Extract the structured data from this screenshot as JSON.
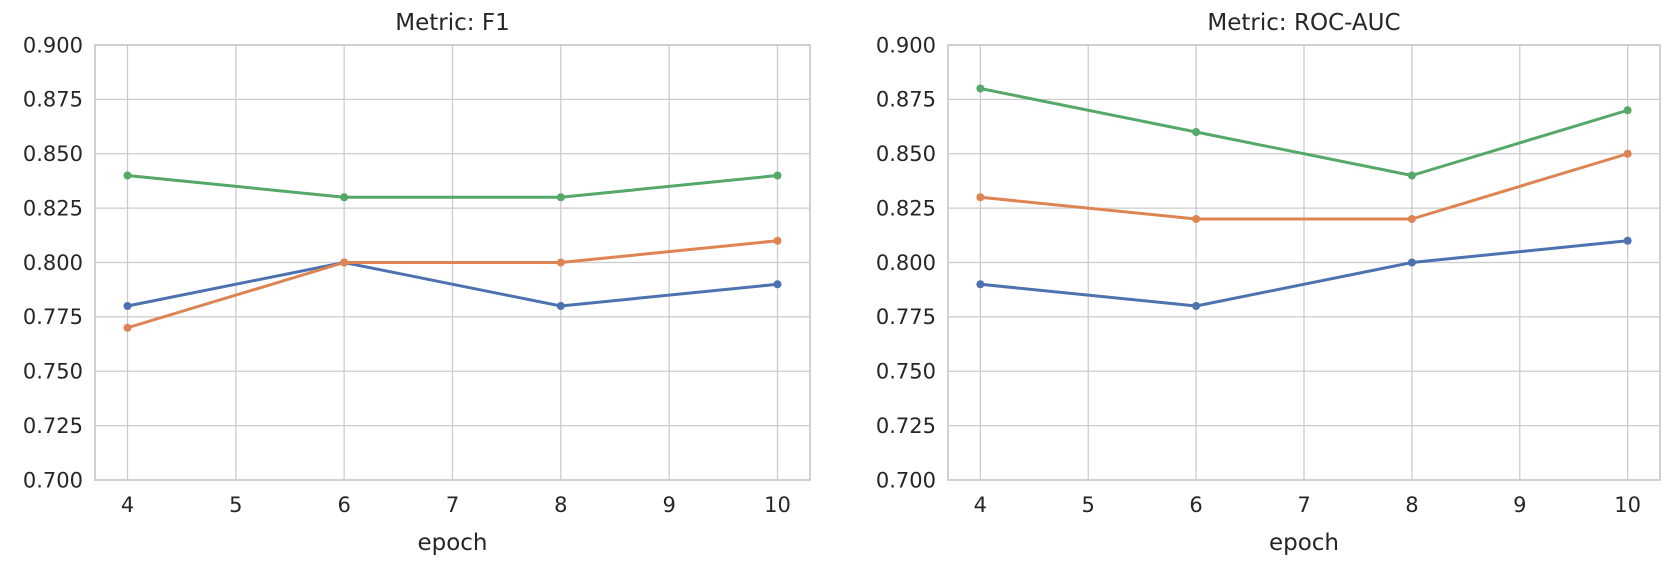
{
  "figure": {
    "background": "#ffffff",
    "text_color": "#262626",
    "grid_color": "#cccccc",
    "spine_color": "#cccccc"
  },
  "chart_data": [
    {
      "type": "line",
      "title": "Metric: F1",
      "xlabel": "epoch",
      "ylabel": "",
      "x": [
        4,
        6,
        8,
        10
      ],
      "xticks": [
        4,
        5,
        6,
        7,
        8,
        9,
        10
      ],
      "yticks": [
        0.7,
        0.725,
        0.75,
        0.775,
        0.8,
        0.825,
        0.85,
        0.875,
        0.9
      ],
      "xlim": [
        3.7,
        10.3
      ],
      "ylim": [
        0.7,
        0.9
      ],
      "grid": true,
      "legend_position": "none",
      "marker": "circle",
      "series": [
        {
          "name": "blue",
          "color": "#4C72B0",
          "values": [
            0.78,
            0.8,
            0.78,
            0.79
          ]
        },
        {
          "name": "orange",
          "color": "#DD8452",
          "values": [
            0.77,
            0.8,
            0.8,
            0.81
          ]
        },
        {
          "name": "green",
          "color": "#55A868",
          "values": [
            0.84,
            0.83,
            0.83,
            0.84
          ]
        }
      ]
    },
    {
      "type": "line",
      "title": "Metric: ROC-AUC",
      "xlabel": "epoch",
      "ylabel": "",
      "x": [
        4,
        6,
        8,
        10
      ],
      "xticks": [
        4,
        5,
        6,
        7,
        8,
        9,
        10
      ],
      "yticks": [
        0.7,
        0.725,
        0.75,
        0.775,
        0.8,
        0.825,
        0.85,
        0.875,
        0.9
      ],
      "xlim": [
        3.7,
        10.3
      ],
      "ylim": [
        0.7,
        0.9
      ],
      "grid": true,
      "legend_position": "none",
      "marker": "circle",
      "series": [
        {
          "name": "blue",
          "color": "#4C72B0",
          "values": [
            0.79,
            0.78,
            0.8,
            0.81
          ]
        },
        {
          "name": "orange",
          "color": "#DD8452",
          "values": [
            0.83,
            0.82,
            0.82,
            0.85
          ]
        },
        {
          "name": "green",
          "color": "#55A868",
          "values": [
            0.88,
            0.86,
            0.84,
            0.87
          ]
        }
      ]
    }
  ]
}
